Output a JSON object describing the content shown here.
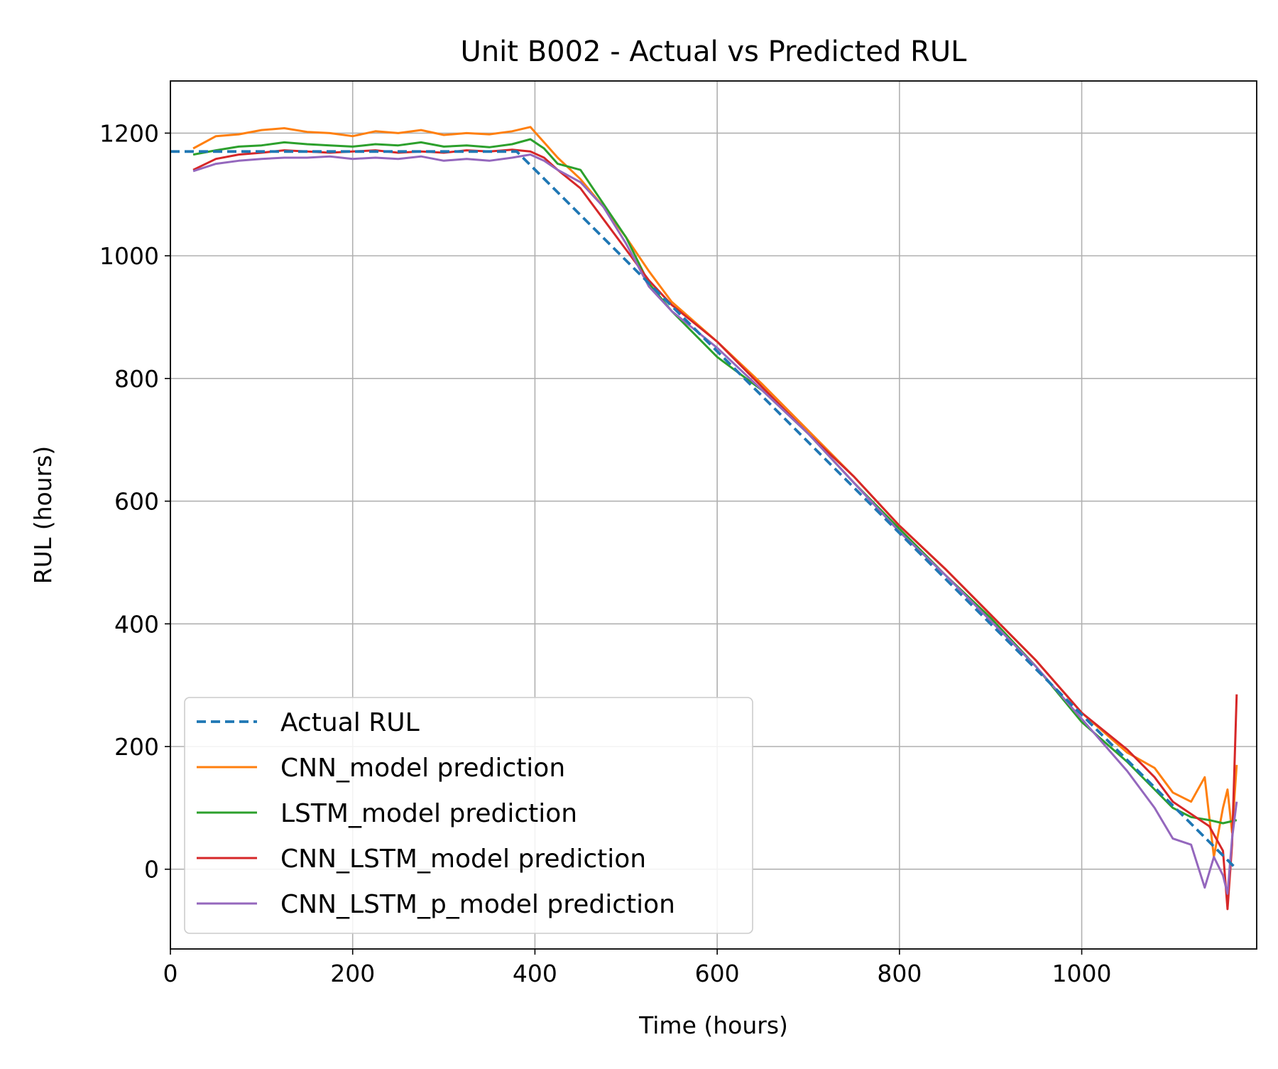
{
  "chart_data": {
    "type": "line",
    "title": "Unit B002 - Actual vs Predicted RUL",
    "xlabel": "Time (hours)",
    "ylabel": "RUL (hours)",
    "xlim": [
      0,
      1192
    ],
    "ylim": [
      -130,
      1285
    ],
    "xticks": [
      0,
      200,
      400,
      600,
      800,
      1000
    ],
    "yticks": [
      0,
      200,
      400,
      600,
      800,
      1000,
      1200
    ],
    "grid": true,
    "legend_position": "lower-left",
    "series": [
      {
        "name": "Actual RUL",
        "color": "#1f77b4",
        "style": "dashed",
        "x": [
          0,
          380,
          1170
        ],
        "y": [
          1170,
          1170,
          0
        ]
      },
      {
        "name": "CNN_model prediction",
        "color": "#ff7f0e",
        "style": "solid",
        "x": [
          25,
          50,
          75,
          100,
          125,
          150,
          175,
          200,
          225,
          250,
          275,
          300,
          325,
          350,
          375,
          395,
          410,
          425,
          450,
          475,
          500,
          525,
          550,
          600,
          650,
          700,
          750,
          800,
          850,
          900,
          950,
          1000,
          1050,
          1080,
          1100,
          1120,
          1135,
          1145,
          1155,
          1160,
          1165,
          1170
        ],
        "y": [
          1175,
          1195,
          1198,
          1205,
          1208,
          1202,
          1200,
          1195,
          1203,
          1200,
          1205,
          1197,
          1200,
          1198,
          1203,
          1210,
          1185,
          1160,
          1125,
          1080,
          1030,
          975,
          925,
          860,
          790,
          715,
          640,
          560,
          490,
          415,
          340,
          255,
          190,
          165,
          125,
          110,
          150,
          20,
          100,
          130,
          60,
          170
        ]
      },
      {
        "name": "LSTM_model prediction",
        "color": "#2ca02c",
        "style": "solid",
        "x": [
          25,
          50,
          75,
          100,
          125,
          150,
          175,
          200,
          225,
          250,
          275,
          300,
          325,
          350,
          375,
          395,
          410,
          425,
          450,
          475,
          500,
          525,
          550,
          600,
          650,
          700,
          750,
          800,
          850,
          900,
          950,
          1000,
          1050,
          1080,
          1100,
          1120,
          1140,
          1155,
          1170
        ],
        "y": [
          1165,
          1172,
          1178,
          1180,
          1185,
          1182,
          1180,
          1178,
          1182,
          1180,
          1185,
          1178,
          1180,
          1177,
          1182,
          1190,
          1175,
          1150,
          1140,
          1085,
          1030,
          955,
          910,
          835,
          780,
          710,
          630,
          555,
          480,
          410,
          330,
          240,
          175,
          130,
          100,
          85,
          80,
          75,
          80
        ]
      },
      {
        "name": "CNN_LSTM_model prediction",
        "color": "#d62728",
        "style": "solid",
        "x": [
          25,
          50,
          75,
          100,
          125,
          150,
          175,
          200,
          225,
          250,
          275,
          300,
          325,
          350,
          375,
          395,
          410,
          425,
          450,
          475,
          500,
          525,
          550,
          600,
          650,
          700,
          750,
          800,
          850,
          900,
          950,
          1000,
          1050,
          1080,
          1100,
          1120,
          1140,
          1155,
          1160,
          1165,
          1170
        ],
        "y": [
          1140,
          1158,
          1165,
          1168,
          1172,
          1170,
          1168,
          1170,
          1172,
          1168,
          1170,
          1168,
          1172,
          1170,
          1173,
          1170,
          1160,
          1140,
          1110,
          1060,
          1010,
          960,
          920,
          860,
          785,
          710,
          640,
          560,
          490,
          415,
          340,
          255,
          195,
          150,
          110,
          90,
          70,
          30,
          -65,
          40,
          285
        ]
      },
      {
        "name": "CNN_LSTM_p_model prediction",
        "color": "#9467bd",
        "style": "solid",
        "x": [
          25,
          50,
          75,
          100,
          125,
          150,
          175,
          200,
          225,
          250,
          275,
          300,
          325,
          350,
          375,
          395,
          410,
          425,
          450,
          475,
          500,
          525,
          550,
          600,
          650,
          700,
          750,
          800,
          850,
          900,
          950,
          1000,
          1050,
          1080,
          1100,
          1120,
          1135,
          1145,
          1155,
          1160,
          1165,
          1170
        ],
        "y": [
          1138,
          1150,
          1155,
          1158,
          1160,
          1160,
          1162,
          1158,
          1160,
          1158,
          1162,
          1155,
          1158,
          1155,
          1160,
          1165,
          1155,
          1140,
          1120,
          1080,
          1020,
          950,
          910,
          850,
          780,
          710,
          630,
          550,
          480,
          405,
          330,
          245,
          160,
          100,
          50,
          40,
          -30,
          20,
          -10,
          -40,
          50,
          110
        ]
      }
    ]
  }
}
